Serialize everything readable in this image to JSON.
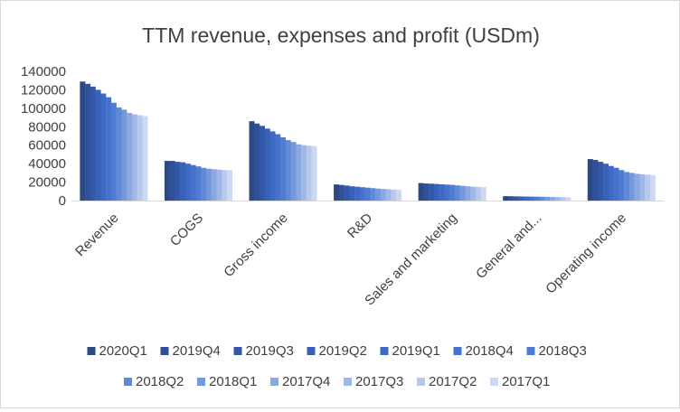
{
  "chart_data": {
    "type": "bar",
    "title": "TTM revenue, expenses and profit (USDm)",
    "xlabel": "",
    "ylabel": "",
    "ylim": [
      0,
      140000
    ],
    "yticks": [
      0,
      20000,
      40000,
      60000,
      80000,
      100000,
      120000,
      140000
    ],
    "ytick_labels": [
      "0",
      "20000",
      "40000",
      "60000",
      "80000",
      "100000",
      "120000",
      "140000"
    ],
    "grid": false,
    "legend_position": "bottom",
    "categories": [
      "Revenue",
      "COGS",
      "Gross income",
      "R&D",
      "Sales and marketing",
      "General and...",
      "Operating income"
    ],
    "series": [
      {
        "name": "2020Q1",
        "color": "#2c4a82",
        "values": [
          129000,
          43000,
          86000,
          17500,
          19000,
          4800,
          45000
        ]
      },
      {
        "name": "2019Q4",
        "color": "#30519a",
        "values": [
          126500,
          43000,
          83500,
          17000,
          18500,
          4700,
          44000
        ]
      },
      {
        "name": "2019Q3",
        "color": "#3358a8",
        "values": [
          123500,
          42000,
          81000,
          16300,
          18300,
          4600,
          42000
        ]
      },
      {
        "name": "2019Q2",
        "color": "#3861b8",
        "values": [
          120000,
          41500,
          78000,
          15500,
          18000,
          4500,
          40000
        ]
      },
      {
        "name": "2019Q1",
        "color": "#3e69c4",
        "values": [
          116000,
          40000,
          75000,
          15000,
          17600,
          4400,
          37500
        ]
      },
      {
        "name": "2018Q4",
        "color": "#4672cc",
        "values": [
          112000,
          38500,
          72000,
          14500,
          17300,
          4300,
          35500
        ]
      },
      {
        "name": "2018Q3",
        "color": "#4f7bd3",
        "values": [
          106000,
          37000,
          68500,
          14000,
          17000,
          4200,
          33000
        ]
      },
      {
        "name": "2018Q2",
        "color": "#6089d8",
        "values": [
          101000,
          35500,
          65500,
          13500,
          16500,
          4100,
          31000
        ]
      },
      {
        "name": "2018Q1",
        "color": "#7598dd",
        "values": [
          98500,
          34500,
          63500,
          13000,
          16000,
          4000,
          30000
        ]
      },
      {
        "name": "2017Q4",
        "color": "#8aa8e2",
        "values": [
          95000,
          34000,
          61000,
          12600,
          15500,
          3900,
          29000
        ]
      },
      {
        "name": "2017Q3",
        "color": "#a1b8e7",
        "values": [
          93500,
          33500,
          60000,
          12300,
          15000,
          3800,
          28500
        ]
      },
      {
        "name": "2017Q2",
        "color": "#b8c9ed",
        "values": [
          92500,
          33000,
          59500,
          12000,
          14800,
          3700,
          28000
        ]
      },
      {
        "name": "2017Q1",
        "color": "#cdd8f2",
        "values": [
          91500,
          33000,
          59000,
          11700,
          14500,
          3600,
          27500
        ]
      }
    ]
  }
}
